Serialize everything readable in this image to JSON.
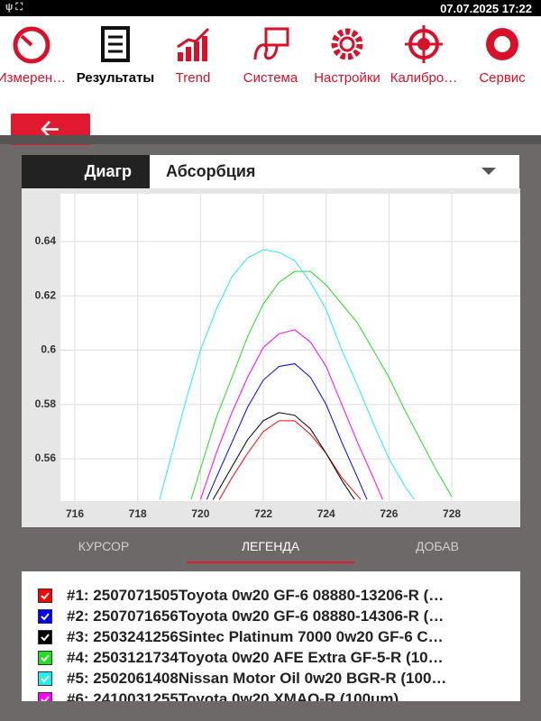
{
  "status_bar": {
    "datetime": "07.07.2025 17:22"
  },
  "toolbar": {
    "items": [
      "Измерен…",
      "Результаты",
      "Trend",
      "Система",
      "Настройки",
      "Калибро…",
      "Сервис"
    ]
  },
  "panel": {
    "mode_label": "Диагр",
    "dropdown": "Абсорбция"
  },
  "chart": {
    "type": "line",
    "xlim": [
      715.54,
      730.18
    ],
    "ylim": [
      0.5444,
      0.6576
    ],
    "xticks": [
      716,
      718,
      720,
      722,
      724,
      726,
      728
    ],
    "yticks": [
      0.56,
      0.58,
      0.6,
      0.62,
      0.64
    ],
    "grid": true,
    "series": [
      {
        "name": "#1: 2507071505Toyota 0w20 GF-6 08880-13206-R (…",
        "color": "#ff0000",
        "x": [
          720.6,
          721,
          721.5,
          722,
          722.5,
          723,
          723.5,
          724,
          724.5,
          725.1
        ],
        "values": [
          0.545,
          0.553,
          0.562,
          0.57,
          0.574,
          0.574,
          0.569,
          0.562,
          0.553,
          0.545
        ]
      },
      {
        "name": "#2: 2507071656Toyota 0w20 GF-6 08880-14306-R (…",
        "color": "#0000ff",
        "x": [
          720.2,
          720.5,
          721,
          721.5,
          722,
          722.5,
          723,
          723.5,
          724,
          724.5,
          725,
          725.3
        ],
        "values": [
          0.545,
          0.553,
          0.566,
          0.579,
          0.589,
          0.594,
          0.595,
          0.59,
          0.58,
          0.566,
          0.553,
          0.545
        ]
      },
      {
        "name": "#3: 2503241256Sintec Platinum 7000 0w20 GF-6 C…",
        "color": "#000000",
        "x": [
          720.4,
          721,
          721.5,
          722,
          722.5,
          723,
          723.5,
          724,
          724.5,
          724.9
        ],
        "values": [
          0.545,
          0.557,
          0.567,
          0.574,
          0.577,
          0.576,
          0.571,
          0.562,
          0.552,
          0.545
        ]
      },
      {
        "name": "#4: 2503121734Toyota 0w20 AFE Extra GF-5-R (10…",
        "color": "#22dd22",
        "x": [
          719.7,
          720.5,
          721,
          721.5,
          722,
          722.5,
          723,
          723.5,
          724,
          724.5,
          725,
          725.5,
          726,
          726.5,
          727,
          727.5,
          728
        ],
        "values": [
          0.545,
          0.575,
          0.59,
          0.605,
          0.617,
          0.625,
          0.629,
          0.629,
          0.624,
          0.617,
          0.61,
          0.6,
          0.59,
          0.578,
          0.567,
          0.556,
          0.546
        ]
      },
      {
        "name": "#5: 2502061408Nissan Motor Oil 0w20 BGR-R (100…",
        "color": "#22eeee",
        "x": [
          718.7,
          719.5,
          720,
          720.5,
          721,
          721.5,
          722,
          722.5,
          723,
          723.5,
          724,
          724.5,
          725,
          725.5,
          726,
          726.5,
          726.8
        ],
        "values": [
          0.545,
          0.58,
          0.6,
          0.615,
          0.627,
          0.634,
          0.637,
          0.636,
          0.633,
          0.625,
          0.615,
          0.6,
          0.587,
          0.573,
          0.56,
          0.55,
          0.545
        ]
      },
      {
        "name": "#6: 2410031255Toyota 0w20 XMAQ-R (100um)",
        "color": "#ff00ff",
        "x": [
          720,
          720.5,
          721,
          721.5,
          722,
          722.5,
          723,
          723.5,
          724,
          724.5,
          725,
          725.5,
          725.8
        ],
        "values": [
          0.545,
          0.562,
          0.577,
          0.59,
          0.601,
          0.606,
          0.6075,
          0.603,
          0.594,
          0.58,
          0.566,
          0.553,
          0.545
        ]
      }
    ]
  },
  "tabs": {
    "items": [
      "КУРСОР",
      "ЛЕГЕНДА",
      "ДОБАВ"
    ],
    "active": 1
  }
}
